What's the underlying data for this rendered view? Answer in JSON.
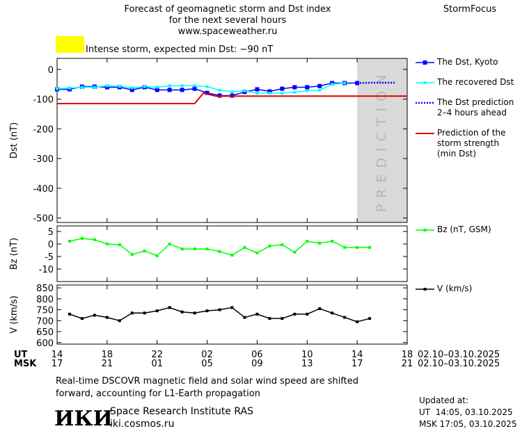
{
  "header": {
    "title_lines": [
      "Forecast of geomagnetic storm and Dst index",
      "for the next several hours",
      "www.spaceweather.ru"
    ],
    "brand": "StormFocus"
  },
  "alert": {
    "text": "Intense storm, expected min Dst: −90 nT",
    "color": "#ffff00"
  },
  "chart_data": [
    {
      "type": "line",
      "ylabel": "Dst (nT)",
      "xlim": [
        0,
        28
      ],
      "ylim": [
        -515,
        37
      ],
      "yticks": [
        0,
        -100,
        -200,
        -300,
        -400,
        -500
      ],
      "shade": {
        "label": "PREDICTION",
        "range": [
          24,
          28
        ],
        "color": "#d9d9d9"
      },
      "series": [
        {
          "name": "The Dst, Kyoto",
          "color": "#0000ff",
          "marker": "large",
          "style": "solid",
          "x": [
            0,
            1,
            2,
            3,
            4,
            5,
            6,
            7,
            8,
            9,
            10,
            11,
            12,
            13,
            14,
            15,
            16,
            17,
            18,
            19,
            20,
            21,
            22,
            23,
            24
          ],
          "values": [
            -67,
            -67,
            -58,
            -58,
            -60,
            -60,
            -69,
            -60,
            -69,
            -69,
            -69,
            -65,
            -79,
            -88,
            -88,
            -76,
            -67,
            -74,
            -65,
            -60,
            -60,
            -56,
            -46,
            -46,
            -46
          ]
        },
        {
          "name": "The recovered Dst",
          "color": "#00ffff",
          "marker": "small",
          "style": "solid",
          "x": [
            0,
            1,
            2,
            3,
            4,
            5,
            6,
            7,
            8,
            9,
            10,
            11,
            12,
            13,
            14,
            15,
            16,
            17,
            18,
            19,
            20,
            21,
            22,
            23
          ],
          "values": [
            -65,
            -63,
            -60,
            -60,
            -55,
            -57,
            -62,
            -58,
            -60,
            -55,
            -55,
            -55,
            -58,
            -70,
            -75,
            -72,
            -80,
            -80,
            -80,
            -77,
            -72,
            -70,
            -50,
            -46
          ]
        },
        {
          "name": "The Dst prediction\n2–4 hours ahead",
          "color": "#0000ff",
          "marker": "none",
          "style": "dotted",
          "x": [
            24,
            25,
            26,
            27
          ],
          "values": [
            -46,
            -45,
            -45,
            -45
          ]
        },
        {
          "name": "Prediction of the\nstorm strength\n(min Dst)",
          "color": "#e00000",
          "marker": "none",
          "style": "solid",
          "x": [
            0,
            11,
            11.7,
            12.7,
            28
          ],
          "values": [
            -115,
            -115,
            -80,
            -90,
            -90
          ]
        }
      ]
    },
    {
      "type": "line",
      "ylabel": "Bz (nT)",
      "xlim": [
        0,
        28
      ],
      "ylim": [
        -15,
        7.2
      ],
      "yticks": [
        5,
        0,
        -5,
        -10
      ],
      "series": [
        {
          "name": "Bz (nT, GSM)",
          "color": "#00ff00",
          "marker": "small",
          "style": "solid",
          "x": [
            1,
            2,
            3,
            4,
            5,
            6,
            7,
            8,
            9,
            10,
            11,
            12,
            13,
            14,
            15,
            16,
            17,
            18,
            19,
            20,
            21,
            22,
            23,
            24,
            25
          ],
          "values": [
            1.1,
            2.2,
            1.7,
            0,
            -0.3,
            -4.2,
            -2.8,
            -4.7,
            0,
            -2,
            -2,
            -2,
            -3,
            -4.5,
            -1.4,
            -3.6,
            -0.8,
            -0.3,
            -3.3,
            1.1,
            0.3,
            1.1,
            -1.4,
            -1.4,
            -1.4
          ]
        }
      ]
    },
    {
      "type": "line",
      "ylabel": "V (km/s)",
      "xlim": [
        0,
        28
      ],
      "ylim": [
        593,
        863
      ],
      "yticks": [
        850,
        800,
        750,
        700,
        650,
        600
      ],
      "xticks": [
        {
          "value": 0,
          "label": "14"
        },
        {
          "value": 4,
          "label": "18"
        },
        {
          "value": 8,
          "label": "22"
        },
        {
          "value": 12,
          "label": "02"
        },
        {
          "value": 16,
          "label": "06"
        },
        {
          "value": 20,
          "label": "10"
        },
        {
          "value": 24,
          "label": "14"
        },
        {
          "value": 28,
          "label": "18"
        }
      ],
      "xticks_msk": [
        {
          "value": 0,
          "label": "17"
        },
        {
          "value": 4,
          "label": "21"
        },
        {
          "value": 8,
          "label": "01"
        },
        {
          "value": 12,
          "label": "05"
        },
        {
          "value": 16,
          "label": "09"
        },
        {
          "value": 20,
          "label": "13"
        },
        {
          "value": 24,
          "label": "17"
        },
        {
          "value": 28,
          "label": "21"
        }
      ],
      "series": [
        {
          "name": "V (km/s)",
          "color": "#000000",
          "marker": "small",
          "style": "solid",
          "x": [
            1,
            2,
            3,
            4,
            5,
            6,
            7,
            8,
            9,
            10,
            11,
            12,
            13,
            14,
            15,
            16,
            17,
            18,
            19,
            20,
            21,
            22,
            23,
            24,
            25
          ],
          "values": [
            730,
            710,
            725,
            715,
            700,
            735,
            735,
            745,
            760,
            740,
            735,
            745,
            750,
            760,
            715,
            730,
            710,
            710,
            730,
            730,
            755,
            735,
            715,
            695,
            710
          ]
        }
      ]
    }
  ],
  "x_axis": {
    "ut_label": "UT",
    "msk_label": "MSK",
    "ut_dates": "02.10–03.10.2025",
    "msk_dates": "02.10–03.10.2025"
  },
  "footer": {
    "note_lines": [
      "Real-time DSCOVR magnetic field and solar wind speed are shifted",
      "forward, accounting for L1-Earth propagation"
    ],
    "logo": "ИКИ",
    "institute": "Space Research Institute RAS",
    "site": "iki.cosmos.ru",
    "updated_label": "Updated at:",
    "updated_ut": "UT  14:05, 03.10.2025",
    "updated_msk": "MSK 17:05, 03.10.2025"
  }
}
